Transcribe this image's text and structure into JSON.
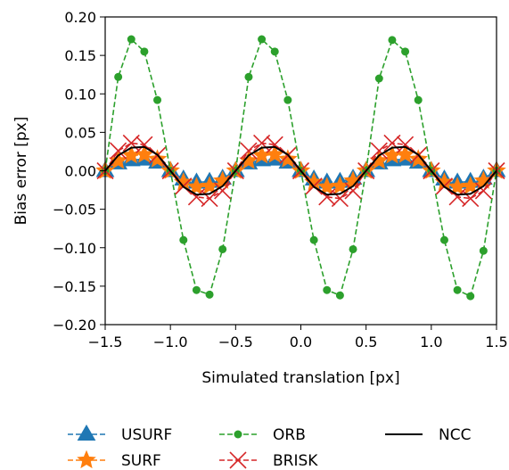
{
  "chart_data": {
    "type": "line",
    "title": "",
    "xlabel": "Simulated translation [px]",
    "ylabel": "Bias error [px]",
    "xlim": [
      -1.5,
      1.5
    ],
    "ylim": [
      -0.2,
      0.2
    ],
    "xticks": [
      -1.5,
      -1.0,
      -0.5,
      0.0,
      0.5,
      1.0,
      1.5
    ],
    "xtick_labels": [
      "−1.5",
      "−1.0",
      "−0.5",
      "0.0",
      "0.5",
      "1.0",
      "1.5"
    ],
    "yticks": [
      0.2,
      0.15,
      0.1,
      0.05,
      0.0,
      -0.05,
      -0.1,
      -0.15,
      -0.2
    ],
    "ytick_labels": [
      "0.20",
      "0.15",
      "0.10",
      "0.05",
      "0.00",
      "−0.05",
      "−0.10",
      "−0.15",
      "−0.20"
    ],
    "grid": false,
    "legend_position": "bottom",
    "x": [
      -1.5,
      -1.4,
      -1.3,
      -1.2,
      -1.1,
      -1.0,
      -0.9,
      -0.8,
      -0.7,
      -0.6,
      -0.5,
      -0.4,
      -0.3,
      -0.2,
      -0.1,
      0.0,
      0.1,
      0.2,
      0.3,
      0.4,
      0.5,
      0.6,
      0.7,
      0.8,
      0.9,
      1.0,
      1.1,
      1.2,
      1.3,
      1.4,
      1.5
    ],
    "series": [
      {
        "name": "USURF",
        "color": "#1f77b4",
        "linestyle": "dashed",
        "marker": "triangle",
        "values": [
          0.0,
          0.01,
          0.014,
          0.015,
          0.011,
          0.0,
          -0.011,
          -0.015,
          -0.014,
          -0.01,
          0.0,
          0.01,
          0.014,
          0.015,
          0.011,
          0.0,
          -0.011,
          -0.015,
          -0.014,
          -0.01,
          0.0,
          0.01,
          0.014,
          0.015,
          0.011,
          0.0,
          -0.011,
          -0.015,
          -0.014,
          -0.01,
          0.0
        ]
      },
      {
        "name": "SURF",
        "color": "#ff7f0e",
        "linestyle": "dashed",
        "marker": "star",
        "values": [
          0.0,
          0.013,
          0.02,
          0.021,
          0.015,
          0.0,
          -0.015,
          -0.021,
          -0.02,
          -0.013,
          0.0,
          0.013,
          0.02,
          0.021,
          0.015,
          0.0,
          -0.015,
          -0.021,
          -0.02,
          -0.013,
          0.0,
          0.013,
          0.02,
          0.021,
          0.015,
          0.0,
          -0.015,
          -0.021,
          -0.02,
          -0.013,
          0.0
        ]
      },
      {
        "name": "ORB",
        "color": "#2ca02c",
        "linestyle": "dashed",
        "marker": "circle",
        "values": [
          0.0,
          0.122,
          0.171,
          0.155,
          0.092,
          0.0,
          -0.09,
          -0.155,
          -0.161,
          -0.102,
          0.0,
          0.122,
          0.171,
          0.155,
          0.092,
          0.0,
          -0.09,
          -0.155,
          -0.162,
          -0.102,
          0.0,
          0.12,
          0.17,
          0.155,
          0.092,
          0.0,
          -0.09,
          -0.155,
          -0.163,
          -0.104,
          0.0
        ]
      },
      {
        "name": "BRISK",
        "color": "#d62728",
        "linestyle": "dashed",
        "marker": "x",
        "values": [
          0.0,
          0.026,
          0.036,
          0.034,
          0.02,
          0.0,
          -0.02,
          -0.034,
          -0.036,
          -0.026,
          0.0,
          0.026,
          0.036,
          0.034,
          0.02,
          0.0,
          -0.02,
          -0.034,
          -0.036,
          -0.026,
          0.0,
          0.026,
          0.036,
          0.034,
          0.02,
          0.0,
          -0.02,
          -0.034,
          -0.036,
          -0.026,
          0.0
        ]
      },
      {
        "name": "NCC",
        "color": "#000000",
        "linestyle": "solid",
        "marker": "none",
        "values": [
          0.0,
          0.02,
          0.03,
          0.031,
          0.021,
          0.0,
          -0.021,
          -0.031,
          -0.03,
          -0.02,
          0.0,
          0.02,
          0.03,
          0.031,
          0.021,
          0.0,
          -0.021,
          -0.031,
          -0.03,
          -0.02,
          0.0,
          0.02,
          0.03,
          0.031,
          0.021,
          0.0,
          -0.021,
          -0.031,
          -0.03,
          -0.02,
          0.0
        ]
      }
    ],
    "legend_order": [
      "USURF",
      "SURF",
      "ORB",
      "BRISK",
      "NCC"
    ]
  }
}
